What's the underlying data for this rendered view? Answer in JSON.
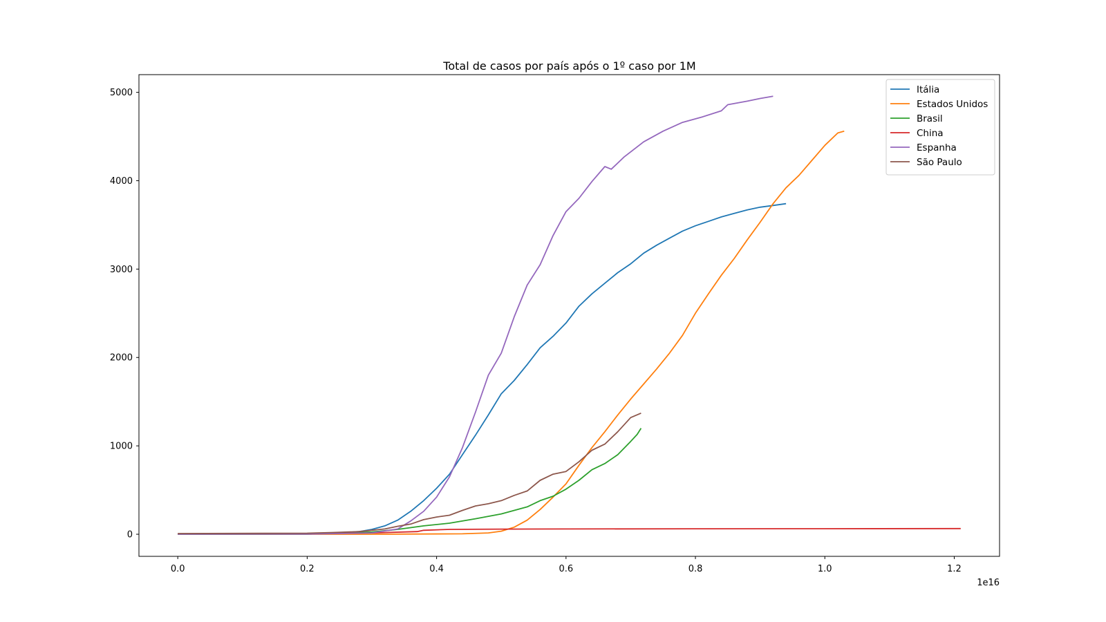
{
  "chart_data": {
    "type": "line",
    "title": "Total de casos por país após o 1º caso por 1M",
    "xlabel": "",
    "ylabel": "",
    "x_offset_label": "1e16",
    "xlim": [
      -0.06,
      1.27
    ],
    "ylim": [
      -250,
      5200
    ],
    "x_ticks": [
      0.0,
      0.2,
      0.4,
      0.6,
      0.8,
      1.0,
      1.2
    ],
    "x_tick_labels": [
      "0.0",
      "0.2",
      "0.4",
      "0.6",
      "0.8",
      "1.0",
      "1.2"
    ],
    "y_ticks": [
      0,
      1000,
      2000,
      3000,
      4000,
      5000
    ],
    "y_tick_labels": [
      "0",
      "1000",
      "2000",
      "3000",
      "4000",
      "5000"
    ],
    "grid": false,
    "legend_position": "top-right",
    "series": [
      {
        "name": "Itália",
        "color": "#1f77b4",
        "points": [
          [
            0.0,
            0
          ],
          [
            0.2,
            3
          ],
          [
            0.25,
            15
          ],
          [
            0.28,
            30
          ],
          [
            0.3,
            55
          ],
          [
            0.32,
            95
          ],
          [
            0.34,
            160
          ],
          [
            0.36,
            260
          ],
          [
            0.38,
            380
          ],
          [
            0.4,
            520
          ],
          [
            0.42,
            680
          ],
          [
            0.44,
            900
          ],
          [
            0.46,
            1120
          ],
          [
            0.48,
            1350
          ],
          [
            0.5,
            1590
          ],
          [
            0.52,
            1740
          ],
          [
            0.54,
            1920
          ],
          [
            0.56,
            2110
          ],
          [
            0.58,
            2240
          ],
          [
            0.6,
            2390
          ],
          [
            0.62,
            2580
          ],
          [
            0.64,
            2720
          ],
          [
            0.66,
            2840
          ],
          [
            0.68,
            2960
          ],
          [
            0.7,
            3060
          ],
          [
            0.72,
            3180
          ],
          [
            0.74,
            3270
          ],
          [
            0.76,
            3350
          ],
          [
            0.78,
            3430
          ],
          [
            0.8,
            3490
          ],
          [
            0.82,
            3540
          ],
          [
            0.84,
            3590
          ],
          [
            0.86,
            3630
          ],
          [
            0.88,
            3670
          ],
          [
            0.9,
            3700
          ],
          [
            0.92,
            3720
          ],
          [
            0.94,
            3740
          ]
        ]
      },
      {
        "name": "Estados Unidos",
        "color": "#ff7f0e",
        "points": [
          [
            0.0,
            0
          ],
          [
            0.3,
            0
          ],
          [
            0.44,
            5
          ],
          [
            0.48,
            15
          ],
          [
            0.5,
            35
          ],
          [
            0.52,
            80
          ],
          [
            0.54,
            160
          ],
          [
            0.56,
            280
          ],
          [
            0.58,
            420
          ],
          [
            0.6,
            570
          ],
          [
            0.62,
            780
          ],
          [
            0.64,
            980
          ],
          [
            0.66,
            1160
          ],
          [
            0.68,
            1350
          ],
          [
            0.7,
            1530
          ],
          [
            0.72,
            1700
          ],
          [
            0.74,
            1870
          ],
          [
            0.76,
            2050
          ],
          [
            0.78,
            2250
          ],
          [
            0.8,
            2500
          ],
          [
            0.82,
            2720
          ],
          [
            0.84,
            2930
          ],
          [
            0.86,
            3120
          ],
          [
            0.88,
            3330
          ],
          [
            0.9,
            3530
          ],
          [
            0.92,
            3740
          ],
          [
            0.94,
            3920
          ],
          [
            0.96,
            4060
          ],
          [
            0.98,
            4230
          ],
          [
            1.0,
            4400
          ],
          [
            1.02,
            4540
          ],
          [
            1.03,
            4560
          ]
        ]
      },
      {
        "name": "Brasil",
        "color": "#2ca02c",
        "points": [
          [
            0.0,
            0
          ],
          [
            0.2,
            2
          ],
          [
            0.3,
            25
          ],
          [
            0.34,
            55
          ],
          [
            0.38,
            95
          ],
          [
            0.42,
            125
          ],
          [
            0.46,
            175
          ],
          [
            0.5,
            230
          ],
          [
            0.54,
            310
          ],
          [
            0.56,
            380
          ],
          [
            0.58,
            430
          ],
          [
            0.6,
            510
          ],
          [
            0.62,
            610
          ],
          [
            0.64,
            730
          ],
          [
            0.66,
            800
          ],
          [
            0.68,
            900
          ],
          [
            0.7,
            1050
          ],
          [
            0.71,
            1130
          ],
          [
            0.716,
            1200
          ]
        ]
      },
      {
        "name": "China",
        "color": "#d62728",
        "points": [
          [
            0.0,
            5
          ],
          [
            0.2,
            6
          ],
          [
            0.3,
            15
          ],
          [
            0.37,
            30
          ],
          [
            0.38,
            45
          ],
          [
            0.42,
            55
          ],
          [
            0.5,
            58
          ],
          [
            0.6,
            60
          ],
          [
            0.8,
            62
          ],
          [
            1.0,
            63
          ],
          [
            1.21,
            64
          ]
        ]
      },
      {
        "name": "Espanha",
        "color": "#9467bd",
        "points": [
          [
            0.0,
            0
          ],
          [
            0.2,
            2
          ],
          [
            0.3,
            15
          ],
          [
            0.34,
            60
          ],
          [
            0.36,
            150
          ],
          [
            0.38,
            260
          ],
          [
            0.4,
            420
          ],
          [
            0.42,
            650
          ],
          [
            0.44,
            980
          ],
          [
            0.46,
            1380
          ],
          [
            0.48,
            1800
          ],
          [
            0.5,
            2050
          ],
          [
            0.52,
            2460
          ],
          [
            0.54,
            2820
          ],
          [
            0.56,
            3050
          ],
          [
            0.58,
            3380
          ],
          [
            0.6,
            3650
          ],
          [
            0.62,
            3800
          ],
          [
            0.64,
            3990
          ],
          [
            0.66,
            4160
          ],
          [
            0.67,
            4130
          ],
          [
            0.69,
            4270
          ],
          [
            0.72,
            4440
          ],
          [
            0.75,
            4560
          ],
          [
            0.78,
            4660
          ],
          [
            0.81,
            4720
          ],
          [
            0.84,
            4790
          ],
          [
            0.85,
            4860
          ],
          [
            0.88,
            4900
          ],
          [
            0.9,
            4930
          ],
          [
            0.92,
            4955
          ]
        ]
      },
      {
        "name": "São Paulo",
        "color": "#8c564b",
        "points": [
          [
            0.0,
            8
          ],
          [
            0.2,
            12
          ],
          [
            0.24,
            20
          ],
          [
            0.28,
            30
          ],
          [
            0.32,
            60
          ],
          [
            0.34,
            90
          ],
          [
            0.36,
            115
          ],
          [
            0.38,
            165
          ],
          [
            0.4,
            195
          ],
          [
            0.42,
            215
          ],
          [
            0.44,
            270
          ],
          [
            0.46,
            320
          ],
          [
            0.48,
            345
          ],
          [
            0.5,
            380
          ],
          [
            0.52,
            440
          ],
          [
            0.54,
            490
          ],
          [
            0.56,
            610
          ],
          [
            0.58,
            680
          ],
          [
            0.6,
            710
          ],
          [
            0.62,
            820
          ],
          [
            0.64,
            950
          ],
          [
            0.66,
            1020
          ],
          [
            0.68,
            1160
          ],
          [
            0.7,
            1320
          ],
          [
            0.716,
            1370
          ]
        ]
      }
    ]
  }
}
